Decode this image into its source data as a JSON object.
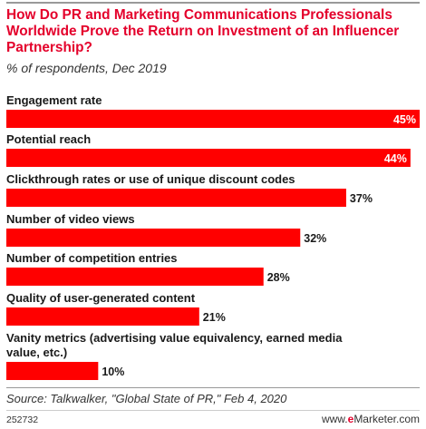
{
  "header": {
    "title": "How Do PR and Marketing Communications Professionals Worldwide Prove the Return on Investment of an Influencer Partnership?",
    "subtitle": "% of respondents, Dec 2019"
  },
  "footer": {
    "source": "Source: Talkwalker, \"Global State of PR,\" Feb 4, 2020",
    "chart_id": "252732",
    "brand_prefix": "www.",
    "brand_e": "e",
    "brand_suffix": "Marketer.com"
  },
  "colors": {
    "bar": "#ff0000",
    "title": "#e4002b"
  },
  "chart_data": {
    "type": "bar",
    "orientation": "horizontal",
    "title": "How Do PR and Marketing Communications Professionals Worldwide Prove the Return on Investment of an Influencer Partnership?",
    "subtitle": "% of respondents, Dec 2019",
    "categories": [
      [
        "Engagement rate"
      ],
      [
        "Potential reach"
      ],
      [
        "Clickthrough rates or use of unique discount codes"
      ],
      [
        "Number of video views"
      ],
      [
        "Number of competition entries"
      ],
      [
        "Quality of user-generated content"
      ],
      [
        "Vanity metrics (advertising value equivalency, earned media",
        "value, etc.)"
      ]
    ],
    "values": [
      45,
      44,
      37,
      32,
      28,
      21,
      10
    ],
    "value_labels": [
      "45%",
      "44%",
      "37%",
      "32%",
      "28%",
      "21%",
      "10%"
    ],
    "xlim": [
      0,
      45
    ],
    "grid": false,
    "legend": "none"
  }
}
